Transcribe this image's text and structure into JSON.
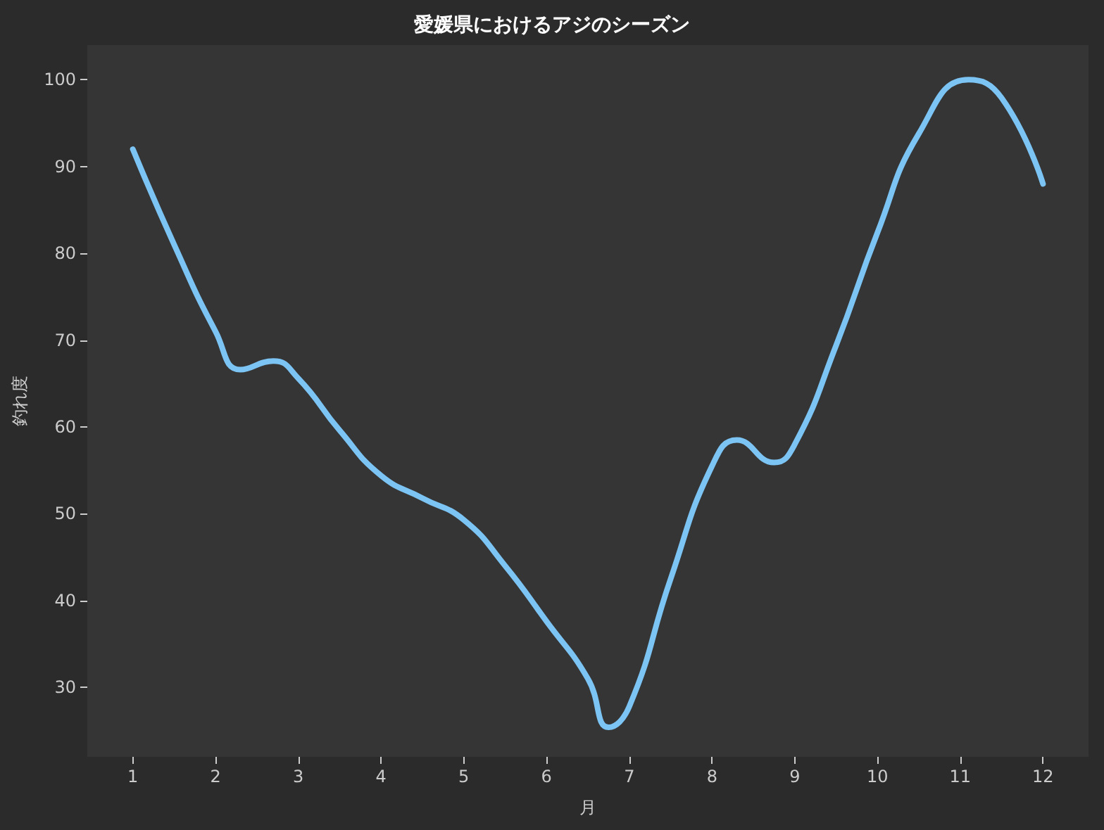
{
  "chart_data": {
    "type": "line",
    "title": "愛媛県におけるアジのシーズン",
    "xlabel": "月",
    "ylabel": "釣れ度",
    "series": [
      {
        "color": "#7cc4f4",
        "x": [
          1,
          1.5,
          2,
          2.3,
          2.7,
          3,
          3.5,
          4,
          4.5,
          5,
          5.5,
          6,
          6.5,
          6.75,
          7,
          7.5,
          8,
          8.3,
          8.75,
          9,
          9.5,
          10,
          10.5,
          11.1,
          11.5,
          12
        ],
        "values": [
          92,
          81,
          71,
          66.6,
          67.6,
          65.6,
          59.6,
          54.4,
          51.8,
          49.3,
          44,
          37.6,
          31,
          25.4,
          27.8,
          42.5,
          55.5,
          58.5,
          55.9,
          58,
          69.4,
          82.4,
          93.8,
          100,
          97.9,
          88
        ]
      }
    ],
    "xlim": [
      0.45,
      12.55
    ],
    "xticks": [
      1,
      2,
      3,
      4,
      5,
      6,
      7,
      8,
      9,
      10,
      11,
      12
    ],
    "ylim": [
      22,
      104
    ],
    "yticks": [
      30,
      40,
      50,
      60,
      70,
      80,
      90,
      100
    ],
    "grid": false,
    "marker": "none",
    "line_style": "solid"
  }
}
